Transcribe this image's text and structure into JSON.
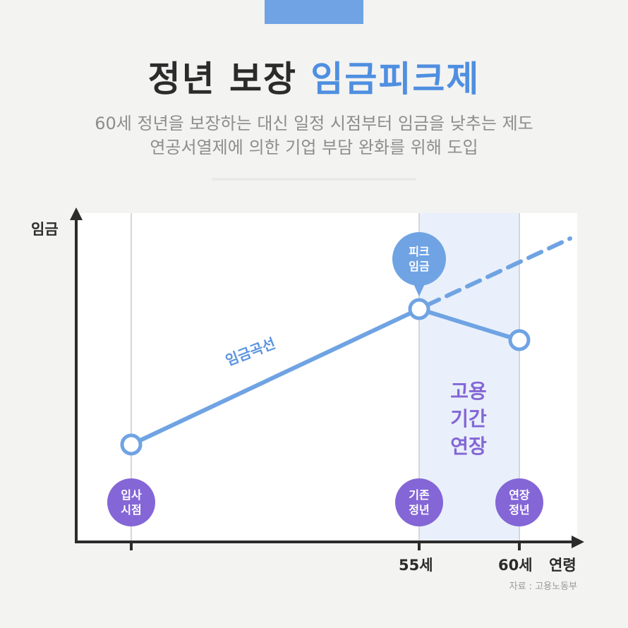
{
  "header": {
    "title_main": "정년 보장",
    "title_accent": "임금피크제",
    "subtitle_line1": "60세 정년을 보장하는 대신 일정 시점부터 임금을 낮추는 제도",
    "subtitle_line2": "연공서열제에 의한 기업 부담 완화를 위해 도입"
  },
  "chart": {
    "y_axis_label": "임금",
    "x_axis_label": "연령",
    "x_ticks": [
      "55세",
      "60세"
    ],
    "curve_label": "임금곡선",
    "peak_bubble": [
      "피크",
      "임금"
    ],
    "milestones": [
      {
        "name": "entry",
        "lines": [
          "입사",
          "시점"
        ]
      },
      {
        "name": "original-retirement",
        "lines": [
          "기존",
          "정년"
        ]
      },
      {
        "name": "extended-retirement",
        "lines": [
          "연장",
          "정년"
        ]
      }
    ],
    "band_label": [
      "고용",
      "기간",
      "연장"
    ]
  },
  "source": "자료 : 고용노동부",
  "colors": {
    "accent_blue": "#4f8fe0",
    "curve_blue": "#6fa3e3",
    "band_fill": "#e9f0fb",
    "milestone_purple": "#8466d6",
    "text_dark": "#2b2b2b",
    "text_gray": "#8d8d8d"
  }
}
